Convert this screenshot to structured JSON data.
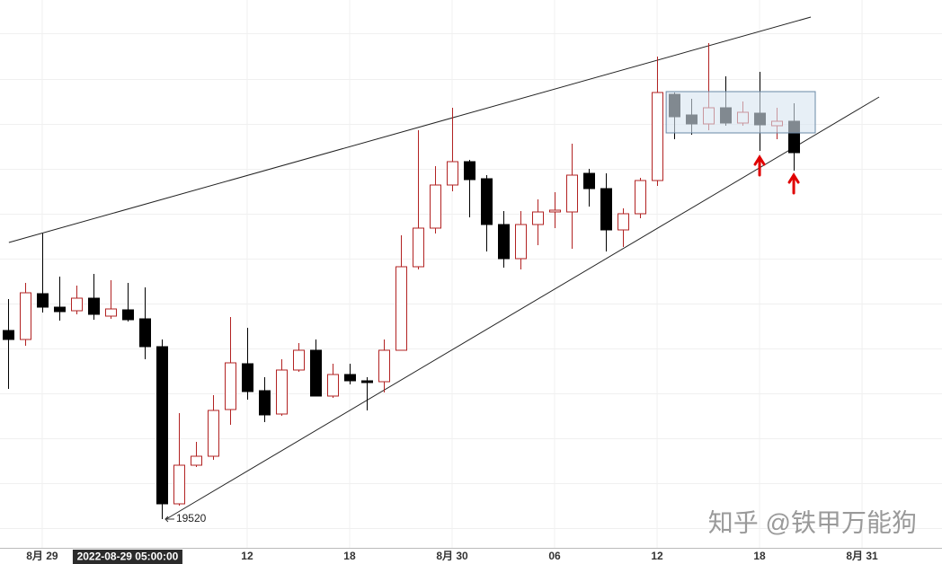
{
  "chart_data": {
    "type": "candlestick",
    "xlim": [
      -0.47,
      54.68
    ],
    "ylim": [
      19488,
      20098
    ],
    "xticks": [
      {
        "value": 2,
        "label": "8月 29"
      },
      {
        "value": 14,
        "label": "12"
      },
      {
        "value": 20,
        "label": "18"
      },
      {
        "value": 26,
        "label": "8月 30"
      },
      {
        "value": 32,
        "label": "06"
      },
      {
        "value": 38,
        "label": "12"
      },
      {
        "value": 44,
        "label": "18"
      },
      {
        "value": 50,
        "label": "8月 31"
      }
    ],
    "crosshair": {
      "value": 7,
      "label": "2022-08-29 05:00:00"
    },
    "up_color": "#b22222",
    "down_color": "#000000",
    "x": [
      0,
      1,
      2,
      3,
      4,
      5,
      6,
      7,
      8,
      9,
      10,
      11,
      12,
      13,
      14,
      15,
      16,
      17,
      18,
      19,
      20,
      21,
      22,
      23,
      24,
      25,
      26,
      27,
      28,
      29,
      30,
      31,
      32,
      33,
      34,
      35,
      36,
      37,
      38,
      39,
      40,
      41,
      42,
      43,
      44,
      45,
      46
    ],
    "open": [
      19730,
      19720,
      19771,
      19756,
      19752,
      19766,
      19746,
      19753,
      19743,
      19712,
      19537,
      19580,
      19590,
      19642,
      19693,
      19663,
      19637,
      19686,
      19708,
      19657,
      19681,
      19674,
      19673,
      19708,
      19801,
      19844,
      19892,
      19918,
      19899,
      19848,
      19810,
      19848,
      19862,
      19862,
      19905,
      19888,
      19842,
      19860,
      19897,
      19993,
      19970,
      19960,
      19978,
      19961,
      19972,
      19958,
      19963
    ],
    "high": [
      19765,
      19783,
      19838,
      19790,
      19780,
      19793,
      19786,
      19783,
      19778,
      19720,
      19638,
      19606,
      19658,
      19745,
      19733,
      19678,
      19698,
      19716,
      19720,
      19693,
      19693,
      19678,
      19720,
      19836,
      19953,
      19913,
      19978,
      19920,
      19903,
      19863,
      19863,
      19876,
      19884,
      19938,
      19910,
      19905,
      19866,
      19900,
      20035,
      19995,
      19988,
      20050,
      20013,
      19985,
      20018,
      19978,
      19983
    ],
    "low": [
      19665,
      19713,
      19750,
      19741,
      19748,
      19742,
      19743,
      19740,
      19698,
      19520,
      19535,
      19578,
      19586,
      19625,
      19653,
      19628,
      19635,
      19684,
      19657,
      19655,
      19670,
      19641,
      19661,
      19708,
      19798,
      19838,
      19885,
      19856,
      19818,
      19800,
      19798,
      19825,
      19844,
      19821,
      19868,
      19818,
      19823,
      19855,
      19891,
      19943,
      19948,
      19953,
      19958,
      19958,
      19930,
      19943,
      19908
    ],
    "close": [
      19720,
      19772,
      19756,
      19751,
      19766,
      19748,
      19754,
      19742,
      19712,
      19537,
      19580,
      19590,
      19641,
      19694,
      19662,
      19636,
      19686,
      19708,
      19657,
      19681,
      19674,
      19672,
      19708,
      19801,
      19844,
      19892,
      19918,
      19898,
      19848,
      19810,
      19848,
      19862,
      19864,
      19903,
      19888,
      19842,
      19860,
      19897,
      19995,
      19968,
      19960,
      19978,
      19961,
      19973,
      19959,
      19963,
      19928
    ],
    "annotation": {
      "x": 9,
      "value": 19520
    },
    "trendlines": [
      {
        "x": [
          0.05,
          47
        ],
        "y": [
          19828,
          20079
        ]
      },
      {
        "x": [
          9.26,
          51
        ],
        "y": [
          19520,
          19990
        ]
      }
    ],
    "box": {
      "x": [
        38.53,
        47.26
      ],
      "y": [
        19996,
        19950
      ]
    },
    "arrows": [
      {
        "x": 44,
        "y": 19923
      },
      {
        "x": 46,
        "y": 19903
      }
    ],
    "watermark": "知乎 @铁甲万能狗"
  }
}
